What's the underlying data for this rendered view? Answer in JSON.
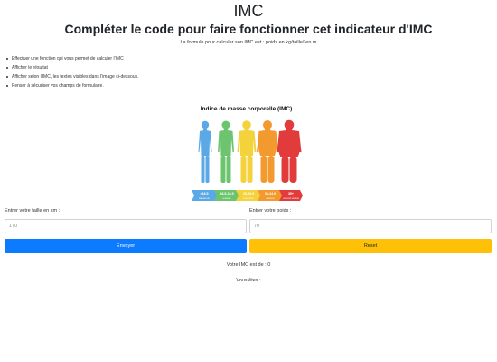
{
  "header": {
    "title": "IMC",
    "subtitle": "Compléter le code pour faire fonctionner cet indicateur d'IMC",
    "formula": "La formule pour calculer son IMC est : poids en kg/taille² en m"
  },
  "instructions": [
    "Effectuer une fonction qui vous permet de calculer l'IMC",
    "Afficher le résultat",
    "Afficher selon l'IMC, les textes visibles dans l'image ci-dessous.",
    "Penser à sécuriser vos champs de formulaire."
  ],
  "infographic": {
    "title": "Indice de masse corporelle (IMC)",
    "colors": [
      "#5aa9e6",
      "#6cc46e",
      "#f3d23c",
      "#f39a2e",
      "#e23b3b"
    ],
    "categories": [
      {
        "range": "<18,5",
        "label": "MAIGREUR"
      },
      {
        "range": "18,5-24,9",
        "label": "NORMAL"
      },
      {
        "range": "25-29,9",
        "label": "SURPOIDS"
      },
      {
        "range": "30-34,9",
        "label": "OBÉSITÉ"
      },
      {
        "range": "35+",
        "label": "OBÉSITÉ SÉVÈRE"
      }
    ]
  },
  "form": {
    "height_label": "Entrer votre taille en cm :",
    "height_placeholder": "170",
    "weight_label": "Entrer votre poids :",
    "weight_placeholder": "70",
    "submit_label": "Envoyer",
    "reset_label": "Reset"
  },
  "result": {
    "imc_text": "Votre IMC est de : 0",
    "status_text": "Vous êtes :"
  }
}
